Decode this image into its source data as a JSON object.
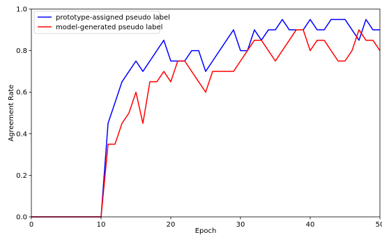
{
  "chart_data": {
    "type": "line",
    "title": "",
    "xlabel": "Epoch",
    "ylabel": "Agreement Rate",
    "xlim": [
      0,
      50
    ],
    "ylim": [
      0,
      1.0
    ],
    "grid": false,
    "legend_position": "top-left",
    "x_ticks": [
      0,
      10,
      20,
      30,
      40,
      50
    ],
    "y_ticks": [
      0.0,
      0.2,
      0.4,
      0.6,
      0.8,
      1.0
    ],
    "x_tick_labels": [
      "0",
      "10",
      "20",
      "30",
      "40",
      "50"
    ],
    "y_tick_labels": [
      "0.0",
      "0.2",
      "0.4",
      "0.6",
      "0.8",
      "1.0"
    ],
    "x": [
      0,
      1,
      2,
      3,
      4,
      5,
      6,
      7,
      8,
      9,
      10,
      11,
      12,
      13,
      14,
      15,
      16,
      17,
      18,
      19,
      20,
      21,
      22,
      23,
      24,
      25,
      26,
      27,
      28,
      29,
      30,
      31,
      32,
      33,
      34,
      35,
      36,
      37,
      38,
      39,
      40,
      41,
      42,
      43,
      44,
      45,
      46,
      47,
      48,
      49,
      50
    ],
    "series": [
      {
        "name": "prototype-assigned pseudo label",
        "color": "#0000ff",
        "values": [
          0,
          0,
          0,
          0,
          0,
          0,
          0,
          0,
          0,
          0,
          0,
          0.45,
          0.55,
          0.65,
          0.7,
          0.75,
          0.7,
          0.75,
          0.8,
          0.85,
          0.75,
          0.75,
          0.75,
          0.8,
          0.8,
          0.7,
          0.75,
          0.8,
          0.85,
          0.9,
          0.8,
          0.8,
          0.9,
          0.85,
          0.9,
          0.9,
          0.95,
          0.9,
          0.9,
          0.9,
          0.95,
          0.9,
          0.9,
          0.95,
          0.95,
          0.95,
          0.9,
          0.85,
          0.95,
          0.9,
          0.9
        ]
      },
      {
        "name": "model-generated pseudo label",
        "color": "#ff0000",
        "values": [
          0,
          0,
          0,
          0,
          0,
          0,
          0,
          0,
          0,
          0,
          0,
          0.35,
          0.35,
          0.45,
          0.5,
          0.6,
          0.45,
          0.65,
          0.65,
          0.7,
          0.65,
          0.75,
          0.75,
          0.7,
          0.65,
          0.6,
          0.7,
          0.7,
          0.7,
          0.7,
          0.75,
          0.8,
          0.85,
          0.85,
          0.8,
          0.75,
          0.8,
          0.85,
          0.9,
          0.9,
          0.8,
          0.85,
          0.85,
          0.8,
          0.75,
          0.75,
          0.8,
          0.9,
          0.85,
          0.85,
          0.8
        ]
      }
    ]
  }
}
